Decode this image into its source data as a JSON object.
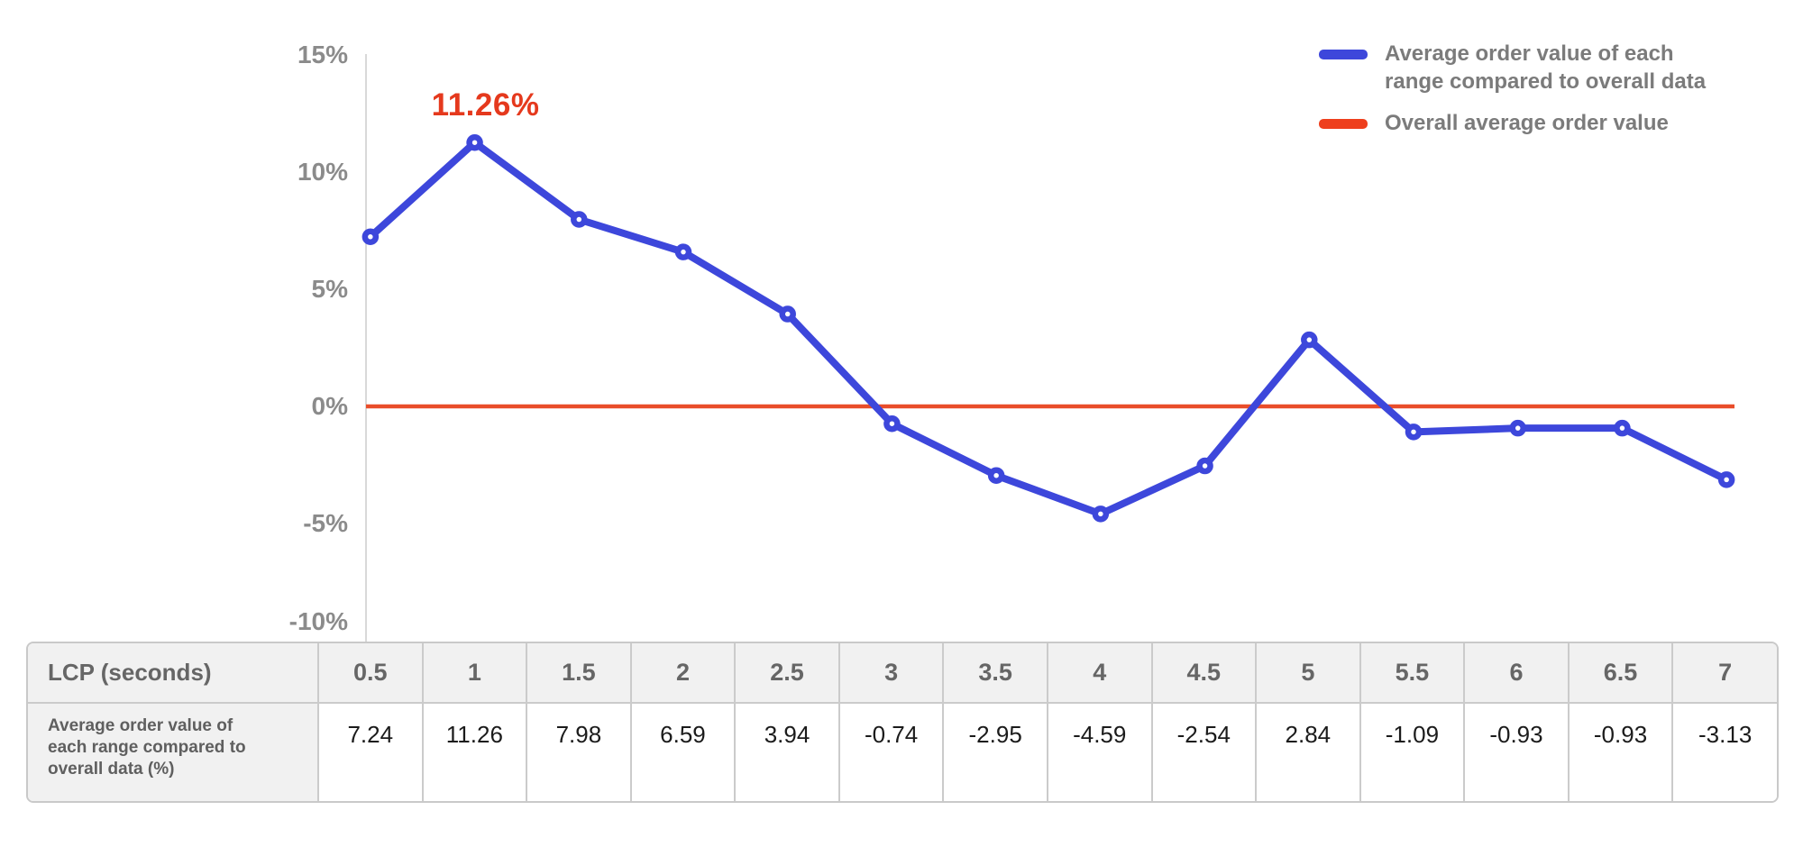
{
  "chart": {
    "annotation_label": "11.26%",
    "y_ticks": [
      "15%",
      "10%",
      "5%",
      "0%",
      "-5%",
      "-10%"
    ],
    "y_tick_values": [
      15,
      10,
      5,
      0,
      -5,
      -10
    ],
    "legend_series_label": "Average order value of each range compared to overall data",
    "legend_reference_label": "Overall average order value",
    "colors": {
      "series_line": "#3d47db",
      "marker_fill": "#ffffff",
      "reference_line": "#e94d2a",
      "legend_series_swatch": "#3d47db",
      "legend_reference_swatch": "#ee3f1d",
      "annotation_text": "#e5391d",
      "axis_line": "#d9d9d9",
      "tick_text": "#8b8b8b"
    }
  },
  "chart_data": {
    "type": "line",
    "x": [
      0.5,
      1,
      1.5,
      2,
      2.5,
      3,
      3.5,
      4,
      4.5,
      5,
      5.5,
      6,
      6.5,
      7
    ],
    "series": [
      {
        "name": "Average order value of each range compared to overall data",
        "values": [
          7.24,
          11.26,
          7.98,
          6.59,
          3.94,
          -0.74,
          -2.95,
          -4.59,
          -2.54,
          2.84,
          -1.09,
          -0.93,
          -0.93,
          -3.13
        ]
      }
    ],
    "reference_line": {
      "name": "Overall average order value",
      "value": 0
    },
    "annotations": [
      {
        "x": 1,
        "y": 11.26,
        "text": "11.26%"
      }
    ],
    "xlabel": "LCP (seconds)",
    "ylabel": "",
    "ylim": [
      -10,
      15
    ],
    "y_tick_step": 5,
    "grid": false,
    "legend_position": "top-right"
  },
  "table": {
    "header_label": "LCP (seconds)",
    "row_label": "Average order value of each range compared to overall data (%)",
    "columns": [
      "0.5",
      "1",
      "1.5",
      "2",
      "2.5",
      "3",
      "3.5",
      "4",
      "4.5",
      "5",
      "5.5",
      "6",
      "6.5",
      "7"
    ],
    "values": [
      "7.24",
      "11.26",
      "7.98",
      "6.59",
      "3.94",
      "-0.74",
      "-2.95",
      "-4.59",
      "-2.54",
      "2.84",
      "-1.09",
      "-0.93",
      "-0.93",
      "-3.13"
    ]
  }
}
